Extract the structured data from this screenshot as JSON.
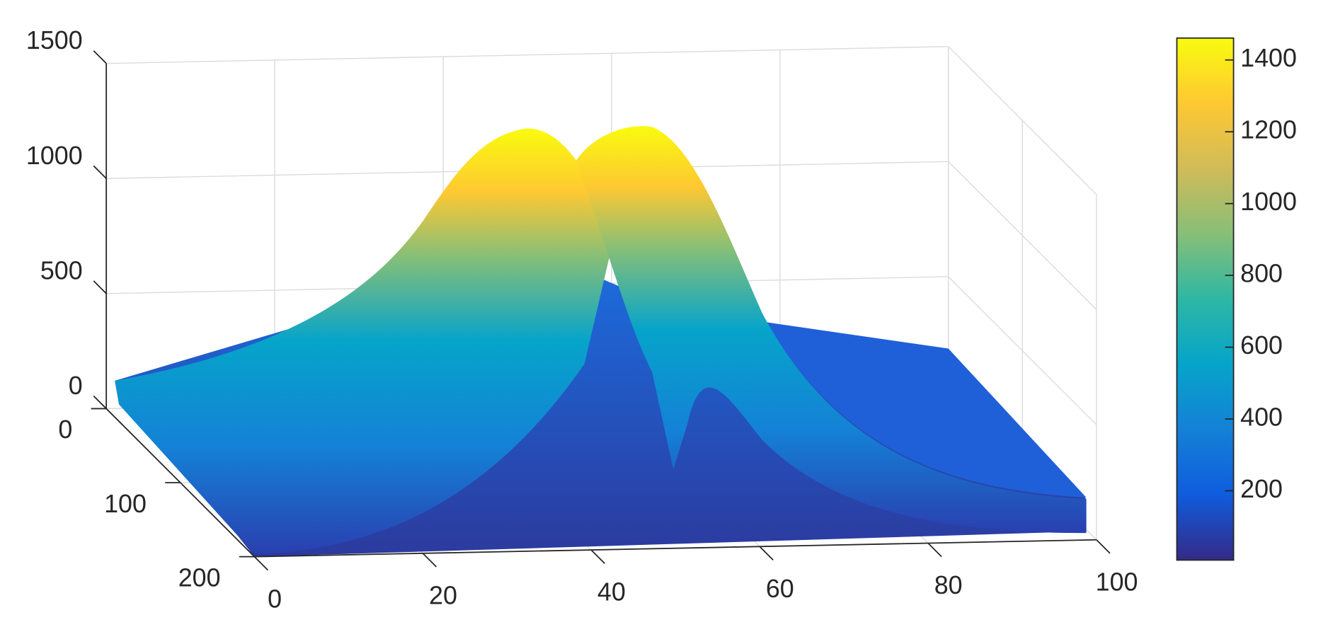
{
  "chart_data": {
    "type": "surface",
    "xlim": [
      0,
      100
    ],
    "xticks": [
      0,
      20,
      40,
      60,
      80,
      100
    ],
    "ylim": [
      0,
      200
    ],
    "yticks": [
      0,
      100,
      200
    ],
    "zlim": [
      0,
      1500
    ],
    "zticks": [
      0,
      500,
      1000,
      1500
    ],
    "grid": true,
    "colorbar": {
      "clim": [
        7,
        1461
      ],
      "ticks": [
        200,
        400,
        600,
        800,
        1000,
        1200,
        1400
      ],
      "colormap": [
        "#352a87",
        "#0f5cdd",
        "#1481d6",
        "#06a4ca",
        "#2eb7a4",
        "#87bf77",
        "#d1bb59",
        "#fec832",
        "#f9fb0e"
      ]
    }
  }
}
